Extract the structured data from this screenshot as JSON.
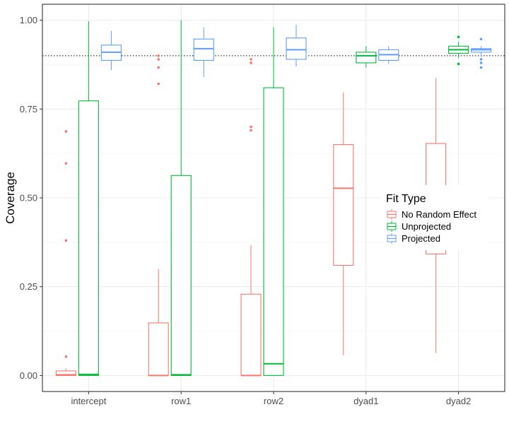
{
  "chart_data": {
    "type": "boxplot",
    "ylabel": "Coverage",
    "xlabel": "",
    "ylim": [
      -0.045,
      1.045
    ],
    "yticks": [
      0.0,
      0.25,
      0.5,
      0.75,
      1.0
    ],
    "ytick_labels": [
      "0.00",
      "0.25",
      "0.50",
      "0.75",
      "1.00"
    ],
    "reference_line": 0.9,
    "categories": [
      "intercept",
      "row1",
      "row2",
      "dyad1",
      "dyad2"
    ],
    "legend": {
      "title": "Fit Type",
      "placement": "right"
    },
    "grid": true,
    "series": [
      {
        "name": "No Random Effect",
        "color": "#F8766D",
        "boxes": [
          {
            "category": "intercept",
            "q1": 0.0,
            "median": 0.002,
            "q3": 0.013,
            "whisker_low": 0.0,
            "whisker_high": 0.02,
            "outliers": [
              0.053,
              0.38,
              0.597,
              0.687
            ]
          },
          {
            "category": "row1",
            "q1": 0.0,
            "median": 0.0,
            "q3": 0.148,
            "whisker_low": 0.0,
            "whisker_high": 0.3,
            "outliers": [
              0.821,
              0.867,
              0.89,
              0.9
            ]
          },
          {
            "category": "row2",
            "q1": 0.0,
            "median": 0.0,
            "q3": 0.229,
            "whisker_low": 0.0,
            "whisker_high": 0.367,
            "outliers": [
              0.69,
              0.7,
              0.88,
              0.89
            ]
          },
          {
            "category": "dyad1",
            "q1": 0.31,
            "median": 0.527,
            "q3": 0.65,
            "whisker_low": 0.057,
            "whisker_high": 0.797,
            "outliers": []
          },
          {
            "category": "dyad2",
            "q1": 0.342,
            "median": 0.5,
            "q3": 0.653,
            "whisker_low": 0.063,
            "whisker_high": 0.837,
            "outliers": []
          }
        ]
      },
      {
        "name": "Unprojected",
        "color": "#00BA38",
        "boxes": [
          {
            "category": "intercept",
            "q1": 0.0,
            "median": 0.003,
            "q3": 0.773,
            "whisker_low": 0.0,
            "whisker_high": 0.997,
            "outliers": []
          },
          {
            "category": "row1",
            "q1": 0.0,
            "median": 0.002,
            "q3": 0.563,
            "whisker_low": 0.0,
            "whisker_high": 1.0,
            "outliers": []
          },
          {
            "category": "row2",
            "q1": 0.0,
            "median": 0.033,
            "q3": 0.81,
            "whisker_low": 0.0,
            "whisker_high": 0.98,
            "outliers": []
          },
          {
            "category": "dyad1",
            "q1": 0.88,
            "median": 0.9,
            "q3": 0.91,
            "whisker_low": 0.867,
            "whisker_high": 0.927,
            "outliers": []
          },
          {
            "category": "dyad2",
            "q1": 0.907,
            "median": 0.917,
            "q3": 0.927,
            "whisker_low": 0.893,
            "whisker_high": 0.94,
            "outliers": [
              0.877,
              0.953
            ]
          }
        ]
      },
      {
        "name": "Projected",
        "color": "#619CFF",
        "boxes": [
          {
            "category": "intercept",
            "q1": 0.887,
            "median": 0.91,
            "q3": 0.93,
            "whisker_low": 0.86,
            "whisker_high": 0.97,
            "outliers": []
          },
          {
            "category": "row1",
            "q1": 0.887,
            "median": 0.92,
            "q3": 0.947,
            "whisker_low": 0.84,
            "whisker_high": 0.98,
            "outliers": []
          },
          {
            "category": "row2",
            "q1": 0.89,
            "median": 0.917,
            "q3": 0.95,
            "whisker_low": 0.87,
            "whisker_high": 0.987,
            "outliers": []
          },
          {
            "category": "dyad1",
            "q1": 0.887,
            "median": 0.903,
            "q3": 0.917,
            "whisker_low": 0.877,
            "whisker_high": 0.927,
            "outliers": []
          },
          {
            "category": "dyad2",
            "q1": 0.91,
            "median": 0.917,
            "q3": 0.92,
            "whisker_low": 0.897,
            "whisker_high": 0.927,
            "outliers": [
              0.867,
              0.88,
              0.89,
              0.947
            ]
          }
        ]
      }
    ]
  }
}
